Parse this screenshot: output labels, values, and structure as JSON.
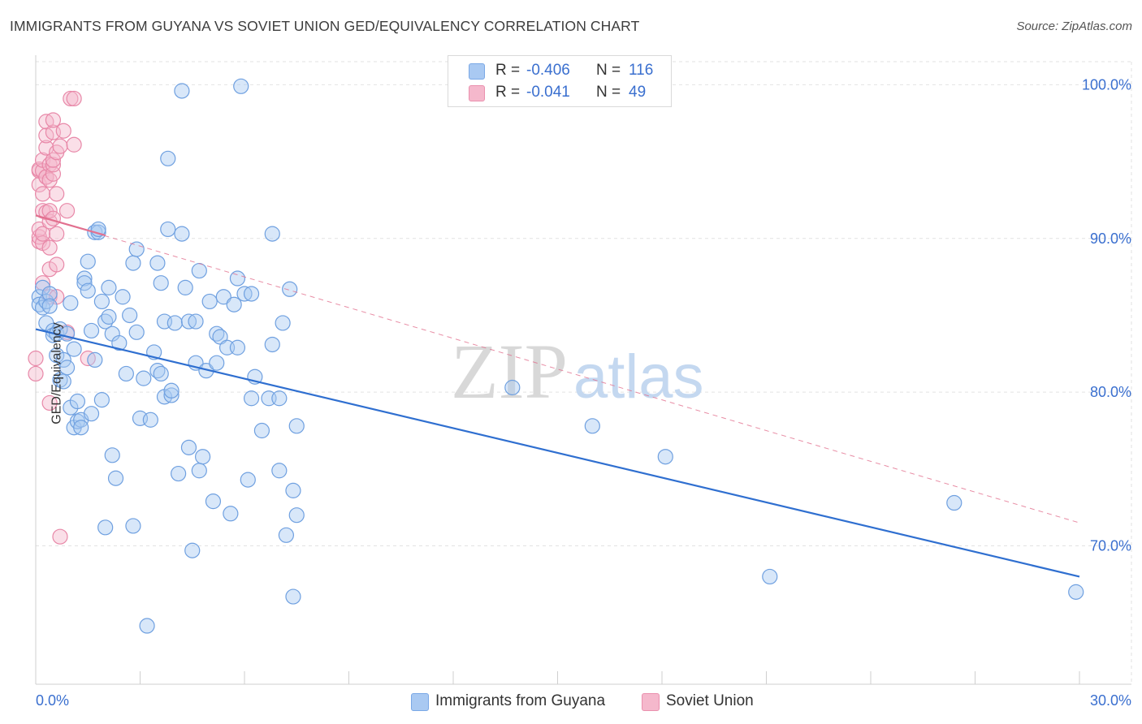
{
  "title": "IMMIGRANTS FROM GUYANA VS SOVIET UNION GED/EQUIVALENCY CORRELATION CHART",
  "source": "Source: ZipAtlas.com",
  "watermark": {
    "zip": "ZIP",
    "atlas": "atlas"
  },
  "legend_top": [
    {
      "r_label": "R =",
      "r_value": "-0.406",
      "n_label": "N =",
      "n_value": "116",
      "color": "#a9c9f2"
    },
    {
      "r_label": "R =",
      "r_value": "-0.041",
      "n_label": "N =",
      "n_value": "49",
      "color": "#f5b8cc"
    }
  ],
  "legend_bottom": [
    {
      "label": "Immigrants from Guyana",
      "color": "#a9c9f2"
    },
    {
      "label": "Soviet Union",
      "color": "#f5b8cc"
    }
  ],
  "chart_data": {
    "type": "scatter",
    "xlabel": "",
    "ylabel": "GED/Equivalency",
    "xlim": [
      0,
      0.3
    ],
    "ylim": [
      0.61,
      1.015
    ],
    "x_tick_labels": [
      "0.0%",
      "30.0%"
    ],
    "y_ticks": [
      0.7,
      0.8,
      0.9,
      1.0
    ],
    "y_tick_labels": [
      "70.0%",
      "80.0%",
      "90.0%",
      "100.0%"
    ],
    "grid": true,
    "series": [
      {
        "name": "Immigrants from Guyana",
        "color": "#a9c9f2",
        "stroke": "#6fa0e0",
        "trend": {
          "x": [
            0,
            0.3
          ],
          "y": [
            0.841,
            0.68
          ],
          "color": "#2f6fd0",
          "style": "solid"
        },
        "points": [
          [
            0.001,
            0.862
          ],
          [
            0.001,
            0.857
          ],
          [
            0.002,
            0.868
          ],
          [
            0.002,
            0.855
          ],
          [
            0.003,
            0.859
          ],
          [
            0.003,
            0.845
          ],
          [
            0.004,
            0.864
          ],
          [
            0.004,
            0.856
          ],
          [
            0.005,
            0.84
          ],
          [
            0.005,
            0.837
          ],
          [
            0.006,
            0.838
          ],
          [
            0.006,
            0.824
          ],
          [
            0.007,
            0.841
          ],
          [
            0.007,
            0.808
          ],
          [
            0.008,
            0.807
          ],
          [
            0.008,
            0.821
          ],
          [
            0.009,
            0.816
          ],
          [
            0.009,
            0.838
          ],
          [
            0.01,
            0.858
          ],
          [
            0.01,
            0.79
          ],
          [
            0.011,
            0.828
          ],
          [
            0.011,
            0.777
          ],
          [
            0.012,
            0.794
          ],
          [
            0.012,
            0.781
          ],
          [
            0.013,
            0.782
          ],
          [
            0.013,
            0.777
          ],
          [
            0.014,
            0.874
          ],
          [
            0.014,
            0.871
          ],
          [
            0.015,
            0.885
          ],
          [
            0.015,
            0.866
          ],
          [
            0.016,
            0.84
          ],
          [
            0.016,
            0.786
          ],
          [
            0.017,
            0.904
          ],
          [
            0.017,
            0.821
          ],
          [
            0.018,
            0.904
          ],
          [
            0.018,
            0.906
          ],
          [
            0.019,
            0.859
          ],
          [
            0.019,
            0.795
          ],
          [
            0.02,
            0.712
          ],
          [
            0.02,
            0.846
          ],
          [
            0.021,
            0.849
          ],
          [
            0.021,
            0.868
          ],
          [
            0.022,
            0.838
          ],
          [
            0.022,
            0.759
          ],
          [
            0.023,
            0.744
          ],
          [
            0.024,
            0.832
          ],
          [
            0.025,
            0.862
          ],
          [
            0.026,
            0.812
          ],
          [
            0.027,
            0.85
          ],
          [
            0.028,
            0.884
          ],
          [
            0.028,
            0.713
          ],
          [
            0.029,
            0.893
          ],
          [
            0.029,
            0.839
          ],
          [
            0.03,
            0.783
          ],
          [
            0.031,
            0.809
          ],
          [
            0.032,
            0.648
          ],
          [
            0.033,
            0.782
          ],
          [
            0.034,
            0.826
          ],
          [
            0.035,
            0.814
          ],
          [
            0.035,
            0.884
          ],
          [
            0.036,
            0.812
          ],
          [
            0.036,
            0.871
          ],
          [
            0.037,
            0.797
          ],
          [
            0.037,
            0.846
          ],
          [
            0.038,
            0.952
          ],
          [
            0.038,
            0.906
          ],
          [
            0.039,
            0.798
          ],
          [
            0.039,
            0.801
          ],
          [
            0.04,
            0.845
          ],
          [
            0.041,
            0.747
          ],
          [
            0.042,
            0.903
          ],
          [
            0.042,
            0.996
          ],
          [
            0.043,
            0.868
          ],
          [
            0.044,
            0.846
          ],
          [
            0.044,
            0.764
          ],
          [
            0.045,
            0.697
          ],
          [
            0.046,
            0.846
          ],
          [
            0.046,
            0.819
          ],
          [
            0.047,
            0.749
          ],
          [
            0.047,
            0.879
          ],
          [
            0.048,
            0.758
          ],
          [
            0.049,
            0.814
          ],
          [
            0.05,
            0.859
          ],
          [
            0.051,
            0.729
          ],
          [
            0.052,
            0.838
          ],
          [
            0.052,
            0.819
          ],
          [
            0.053,
            0.836
          ],
          [
            0.054,
            0.862
          ],
          [
            0.055,
            0.829
          ],
          [
            0.056,
            0.721
          ],
          [
            0.057,
            0.857
          ],
          [
            0.058,
            0.829
          ],
          [
            0.058,
            0.874
          ],
          [
            0.059,
            0.999
          ],
          [
            0.06,
            0.864
          ],
          [
            0.061,
            0.743
          ],
          [
            0.062,
            0.864
          ],
          [
            0.062,
            0.796
          ],
          [
            0.063,
            0.81
          ],
          [
            0.065,
            0.775
          ],
          [
            0.067,
            0.796
          ],
          [
            0.068,
            0.831
          ],
          [
            0.068,
            0.903
          ],
          [
            0.07,
            0.796
          ],
          [
            0.07,
            0.749
          ],
          [
            0.071,
            0.845
          ],
          [
            0.072,
            0.707
          ],
          [
            0.073,
            0.867
          ],
          [
            0.074,
            0.736
          ],
          [
            0.074,
            0.667
          ],
          [
            0.075,
            0.72
          ],
          [
            0.075,
            0.778
          ],
          [
            0.137,
            0.803
          ],
          [
            0.16,
            0.778
          ],
          [
            0.181,
            0.758
          ],
          [
            0.211,
            0.68
          ]
        ],
        "extra_points": [
          [
            0.264,
            0.728
          ],
          [
            0.299,
            0.67
          ]
        ]
      },
      {
        "name": "Soviet Union",
        "color": "#f5b8cc",
        "stroke": "#e888a8",
        "trend": {
          "x": [
            0,
            0.3
          ],
          "y": [
            0.915,
            0.715
          ],
          "color": "#e2708f",
          "style": "dashed"
        },
        "trend_solid": {
          "x": [
            0,
            0.02
          ],
          "y": [
            0.915,
            0.902
          ]
        },
        "points": [
          [
            0.0,
            0.822
          ],
          [
            0.0,
            0.812
          ],
          [
            0.001,
            0.898
          ],
          [
            0.001,
            0.901
          ],
          [
            0.001,
            0.906
          ],
          [
            0.001,
            0.935
          ],
          [
            0.001,
            0.944
          ],
          [
            0.001,
            0.945
          ],
          [
            0.002,
            0.897
          ],
          [
            0.002,
            0.871
          ],
          [
            0.002,
            0.918
          ],
          [
            0.002,
            0.929
          ],
          [
            0.002,
            0.903
          ],
          [
            0.002,
            0.944
          ],
          [
            0.002,
            0.951
          ],
          [
            0.003,
            0.917
          ],
          [
            0.003,
            0.959
          ],
          [
            0.003,
            0.967
          ],
          [
            0.003,
            0.976
          ],
          [
            0.003,
            0.94
          ],
          [
            0.003,
            0.94
          ],
          [
            0.004,
            0.911
          ],
          [
            0.004,
            0.918
          ],
          [
            0.004,
            0.894
          ],
          [
            0.004,
            0.88
          ],
          [
            0.004,
            0.862
          ],
          [
            0.004,
            0.793
          ],
          [
            0.004,
            0.938
          ],
          [
            0.004,
            0.948
          ],
          [
            0.005,
            0.969
          ],
          [
            0.005,
            0.977
          ],
          [
            0.005,
            0.942
          ],
          [
            0.005,
            0.948
          ],
          [
            0.005,
            0.951
          ],
          [
            0.005,
            0.913
          ],
          [
            0.006,
            0.903
          ],
          [
            0.006,
            0.883
          ],
          [
            0.006,
            0.956
          ],
          [
            0.006,
            0.929
          ],
          [
            0.006,
            0.862
          ],
          [
            0.007,
            0.96
          ],
          [
            0.007,
            0.706
          ],
          [
            0.008,
            0.97
          ],
          [
            0.009,
            0.839
          ],
          [
            0.009,
            0.918
          ],
          [
            0.01,
            0.991
          ],
          [
            0.011,
            0.991
          ],
          [
            0.011,
            0.961
          ],
          [
            0.015,
            0.822
          ]
        ]
      }
    ]
  }
}
